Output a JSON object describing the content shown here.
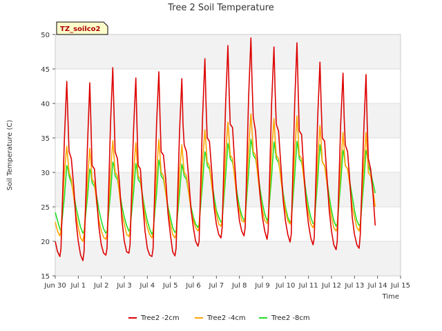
{
  "chart_data": {
    "type": "line",
    "title": "Tree 2 Soil Temperature",
    "xlabel": "Time",
    "ylabel": "Soil Temperature (C)",
    "xlim": [
      0,
      15
    ],
    "ylim": [
      15,
      50
    ],
    "x_ticks": [
      "Jun 30",
      "Jul 1",
      "Jul 2",
      "Jul 3",
      "Jul 4",
      "Jul 5",
      "Jul 6",
      "Jul 7",
      "Jul 8",
      "Jul 9",
      "Jul 10",
      "Jul 11",
      "Jul 12",
      "Jul 13",
      "Jul 14",
      "Jul 15"
    ],
    "y_ticks": [
      15,
      20,
      25,
      30,
      35,
      40,
      45,
      50
    ],
    "grid": true,
    "legend_position": "bottom",
    "badge": "TZ_soilco2",
    "colors": {
      "s1": "#dd0000",
      "s2": "#ffa500",
      "s3": "#22dd22",
      "band": "#f2f2f2",
      "badge_bg": "#ffffcc"
    },
    "series": [
      {
        "name": "Tree2 -2cm",
        "color": "#dd0000",
        "x": [
          0.0,
          0.1,
          0.2,
          0.25,
          0.4,
          0.5,
          0.55,
          0.6,
          0.7,
          0.8,
          0.9,
          1.0,
          1.1,
          1.2,
          1.25,
          1.4,
          1.5,
          1.55,
          1.6,
          1.7,
          1.8,
          1.9,
          2.0,
          2.1,
          2.2,
          2.25,
          2.4,
          2.5,
          2.55,
          2.6,
          2.7,
          2.8,
          2.9,
          3.0,
          3.1,
          3.2,
          3.25,
          3.4,
          3.5,
          3.55,
          3.6,
          3.7,
          3.8,
          3.9,
          4.0,
          4.1,
          4.2,
          4.25,
          4.4,
          4.5,
          4.55,
          4.6,
          4.7,
          4.8,
          4.9,
          5.0,
          5.1,
          5.2,
          5.25,
          5.4,
          5.5,
          5.55,
          5.6,
          5.7,
          5.8,
          5.9,
          6.0,
          6.1,
          6.2,
          6.25,
          6.4,
          6.5,
          6.55,
          6.6,
          6.7,
          6.8,
          6.9,
          7.0,
          7.1,
          7.2,
          7.25,
          7.4,
          7.5,
          7.55,
          7.6,
          7.7,
          7.8,
          7.9,
          8.0,
          8.1,
          8.2,
          8.25,
          8.4,
          8.5,
          8.55,
          8.6,
          8.7,
          8.8,
          8.9,
          9.0,
          9.1,
          9.2,
          9.25,
          9.4,
          9.5,
          9.55,
          9.6,
          9.7,
          9.8,
          9.9,
          10.0,
          10.1,
          10.2,
          10.25,
          10.4,
          10.5,
          10.55,
          10.6,
          10.7,
          10.8,
          10.9,
          11.0,
          11.1,
          11.2,
          11.25,
          11.4,
          11.5,
          11.55,
          11.6,
          11.7,
          11.8,
          11.9,
          12.0,
          12.1,
          12.2,
          12.25,
          12.4,
          12.5,
          12.55,
          12.6,
          12.7,
          12.8,
          12.9,
          13.0,
          13.1,
          13.2,
          13.25,
          13.4,
          13.5,
          13.55,
          13.6,
          13.7,
          13.8,
          13.9
        ],
        "values": [
          20.0,
          18.5,
          17.8,
          19.0,
          35.0,
          43.2,
          38.0,
          33.0,
          32.0,
          28.0,
          23.0,
          20.0,
          18.0,
          17.2,
          18.5,
          34.0,
          43.0,
          37.0,
          31.0,
          30.5,
          26.0,
          22.0,
          19.5,
          18.3,
          18.0,
          19.0,
          37.0,
          45.2,
          39.0,
          33.0,
          32.0,
          28.0,
          23.0,
          20.0,
          18.5,
          18.3,
          19.5,
          36.0,
          43.7,
          37.0,
          31.0,
          30.5,
          25.5,
          21.5,
          19.0,
          18.0,
          17.8,
          19.0,
          37.0,
          44.6,
          38.0,
          33.0,
          32.5,
          29.0,
          24.0,
          21.0,
          18.5,
          17.9,
          19.0,
          36.0,
          43.6,
          37.0,
          34.0,
          33.0,
          29.0,
          24.5,
          22.0,
          20.0,
          19.3,
          20.0,
          38.0,
          46.5,
          40.0,
          35.0,
          34.5,
          30.0,
          25.0,
          22.5,
          21.0,
          20.5,
          22.0,
          40.0,
          48.4,
          42.0,
          37.0,
          36.5,
          31.0,
          26.0,
          23.0,
          21.5,
          20.8,
          22.0,
          41.0,
          49.5,
          43.0,
          38.0,
          36.0,
          31.0,
          26.5,
          23.5,
          21.5,
          20.3,
          21.5,
          40.0,
          48.2,
          42.0,
          37.0,
          36.0,
          31.0,
          26.0,
          23.0,
          21.0,
          19.9,
          21.0,
          40.0,
          48.8,
          42.0,
          36.0,
          35.5,
          30.0,
          25.5,
          22.5,
          20.5,
          19.5,
          20.5,
          38.0,
          46.0,
          40.0,
          35.0,
          34.5,
          29.5,
          24.5,
          21.5,
          19.5,
          18.8,
          20.0,
          37.0,
          44.4,
          38.0,
          34.0,
          33.0,
          28.5,
          23.5,
          21.0,
          19.5,
          19.0,
          21.0,
          36.0,
          44.2,
          37.0,
          32.0,
          30.5,
          27.0,
          22.3
        ]
      },
      {
        "name": "Tree2 -4cm",
        "color": "#ffa500",
        "x": [
          0.0,
          0.1,
          0.2,
          0.25,
          0.4,
          0.5,
          0.55,
          0.6,
          0.7,
          0.8,
          0.9,
          1.0,
          1.1,
          1.2,
          1.25,
          1.4,
          1.5,
          1.55,
          1.6,
          1.7,
          1.8,
          1.9,
          2.0,
          2.1,
          2.2,
          2.25,
          2.4,
          2.5,
          2.55,
          2.6,
          2.7,
          2.8,
          2.9,
          3.0,
          3.1,
          3.2,
          3.25,
          3.4,
          3.5,
          3.55,
          3.6,
          3.7,
          3.8,
          3.9,
          4.0,
          4.1,
          4.2,
          4.25,
          4.4,
          4.5,
          4.55,
          4.6,
          4.7,
          4.8,
          4.9,
          5.0,
          5.1,
          5.2,
          5.25,
          5.4,
          5.5,
          5.55,
          5.6,
          5.7,
          5.8,
          5.9,
          6.0,
          6.1,
          6.2,
          6.25,
          6.4,
          6.5,
          6.55,
          6.6,
          6.7,
          6.8,
          6.9,
          7.0,
          7.1,
          7.2,
          7.25,
          7.4,
          7.5,
          7.55,
          7.6,
          7.7,
          7.8,
          7.9,
          8.0,
          8.1,
          8.2,
          8.25,
          8.4,
          8.5,
          8.55,
          8.6,
          8.7,
          8.8,
          8.9,
          9.0,
          9.1,
          9.2,
          9.25,
          9.4,
          9.5,
          9.55,
          9.6,
          9.7,
          9.8,
          9.9,
          10.0,
          10.1,
          10.2,
          10.25,
          10.4,
          10.5,
          10.55,
          10.6,
          10.7,
          10.8,
          10.9,
          11.0,
          11.1,
          11.2,
          11.25,
          11.4,
          11.5,
          11.55,
          11.6,
          11.7,
          11.8,
          11.9,
          12.0,
          12.1,
          12.2,
          12.25,
          12.4,
          12.5,
          12.55,
          12.6,
          12.7,
          12.8,
          12.9,
          13.0,
          13.1,
          13.2,
          13.25,
          13.4,
          13.5,
          13.55,
          13.6,
          13.7,
          13.8,
          13.9
        ],
        "values": [
          22.8,
          21.5,
          20.8,
          21.5,
          30.0,
          33.8,
          32.0,
          30.0,
          29.0,
          26.5,
          24.0,
          22.0,
          20.5,
          20.0,
          21.0,
          29.0,
          33.5,
          31.5,
          29.0,
          28.5,
          25.5,
          23.0,
          21.5,
          20.6,
          20.3,
          21.0,
          30.0,
          34.6,
          32.5,
          30.0,
          29.5,
          26.5,
          24.0,
          22.5,
          21.0,
          20.7,
          21.5,
          30.0,
          34.3,
          32.0,
          29.5,
          29.0,
          26.0,
          23.5,
          22.0,
          21.0,
          20.5,
          21.0,
          30.0,
          34.8,
          32.5,
          30.0,
          29.5,
          27.0,
          24.5,
          22.5,
          21.0,
          20.5,
          21.0,
          30.0,
          34.0,
          32.0,
          30.0,
          29.5,
          27.0,
          24.5,
          23.0,
          22.0,
          21.5,
          22.0,
          31.5,
          36.2,
          34.0,
          31.5,
          31.0,
          28.0,
          25.5,
          24.0,
          22.5,
          22.2,
          23.0,
          32.5,
          37.3,
          35.0,
          32.5,
          32.0,
          29.0,
          26.0,
          24.5,
          23.0,
          22.8,
          23.5,
          33.5,
          38.5,
          36.0,
          33.0,
          32.5,
          29.5,
          26.5,
          24.5,
          23.0,
          22.6,
          23.0,
          33.0,
          37.8,
          35.0,
          32.5,
          32.0,
          29.0,
          26.5,
          24.5,
          23.0,
          22.5,
          23.0,
          33.0,
          38.2,
          35.5,
          32.5,
          32.0,
          29.0,
          26.0,
          24.0,
          22.5,
          22.0,
          22.5,
          32.0,
          36.8,
          34.5,
          31.5,
          31.0,
          28.5,
          25.5,
          23.5,
          22.0,
          21.5,
          22.0,
          31.0,
          35.8,
          33.5,
          31.0,
          30.5,
          28.0,
          25.0,
          23.5,
          22.0,
          21.5,
          22.5,
          31.0,
          35.8,
          33.0,
          30.0,
          29.5,
          27.5,
          25.0
        ]
      },
      {
        "name": "Tree2 -8cm",
        "color": "#22dd22",
        "x": [
          0.0,
          0.1,
          0.2,
          0.25,
          0.4,
          0.5,
          0.55,
          0.6,
          0.7,
          0.8,
          0.9,
          1.0,
          1.1,
          1.2,
          1.25,
          1.4,
          1.5,
          1.55,
          1.6,
          1.7,
          1.8,
          1.9,
          2.0,
          2.1,
          2.2,
          2.25,
          2.4,
          2.5,
          2.55,
          2.6,
          2.7,
          2.8,
          2.9,
          3.0,
          3.1,
          3.2,
          3.25,
          3.4,
          3.5,
          3.55,
          3.6,
          3.7,
          3.8,
          3.9,
          4.0,
          4.1,
          4.2,
          4.25,
          4.4,
          4.5,
          4.55,
          4.6,
          4.7,
          4.8,
          4.9,
          5.0,
          5.1,
          5.2,
          5.25,
          5.4,
          5.5,
          5.55,
          5.6,
          5.7,
          5.8,
          5.9,
          6.0,
          6.1,
          6.2,
          6.25,
          6.4,
          6.5,
          6.55,
          6.6,
          6.7,
          6.8,
          6.9,
          7.0,
          7.1,
          7.2,
          7.25,
          7.4,
          7.5,
          7.55,
          7.6,
          7.7,
          7.8,
          7.9,
          8.0,
          8.1,
          8.2,
          8.25,
          8.4,
          8.5,
          8.55,
          8.6,
          8.7,
          8.8,
          8.9,
          9.0,
          9.1,
          9.2,
          9.25,
          9.4,
          9.5,
          9.55,
          9.6,
          9.7,
          9.8,
          9.9,
          10.0,
          10.1,
          10.2,
          10.25,
          10.4,
          10.5,
          10.55,
          10.6,
          10.7,
          10.8,
          10.9,
          11.0,
          11.1,
          11.2,
          11.25,
          11.4,
          11.5,
          11.55,
          11.6,
          11.7,
          11.8,
          11.9,
          12.0,
          12.1,
          12.2,
          12.25,
          12.4,
          12.5,
          12.55,
          12.6,
          12.7,
          12.8,
          12.9,
          13.0,
          13.1,
          13.2,
          13.25,
          13.4,
          13.5,
          13.55,
          13.6,
          13.7,
          13.8,
          13.9
        ],
        "values": [
          24.2,
          23.0,
          21.8,
          21.5,
          26.5,
          31.0,
          30.5,
          29.5,
          28.5,
          27.0,
          25.0,
          23.5,
          22.0,
          21.2,
          21.5,
          26.5,
          30.5,
          30.0,
          28.5,
          28.0,
          26.5,
          24.5,
          23.0,
          21.8,
          21.2,
          21.5,
          27.0,
          31.5,
          31.0,
          29.5,
          29.0,
          27.0,
          25.0,
          23.5,
          22.3,
          21.5,
          21.8,
          27.0,
          31.3,
          30.5,
          29.0,
          28.5,
          26.5,
          24.5,
          23.0,
          21.8,
          21.0,
          21.5,
          27.0,
          31.8,
          31.0,
          29.5,
          29.0,
          27.0,
          25.0,
          23.5,
          22.0,
          21.3,
          21.5,
          27.0,
          31.2,
          30.5,
          29.5,
          29.0,
          27.0,
          25.0,
          23.5,
          22.5,
          22.0,
          22.5,
          28.5,
          33.0,
          32.5,
          31.0,
          30.5,
          28.5,
          26.5,
          24.5,
          23.5,
          22.8,
          23.0,
          29.5,
          34.2,
          33.5,
          32.0,
          31.5,
          29.5,
          27.0,
          25.0,
          23.8,
          23.0,
          23.5,
          30.0,
          34.8,
          34.0,
          32.5,
          32.0,
          30.0,
          27.5,
          25.5,
          24.0,
          23.0,
          23.5,
          29.5,
          34.4,
          33.5,
          32.0,
          31.5,
          29.5,
          27.0,
          25.0,
          23.5,
          22.8,
          23.0,
          29.5,
          34.5,
          33.5,
          32.0,
          31.5,
          29.5,
          27.0,
          25.0,
          23.5,
          22.6,
          22.5,
          29.0,
          34.0,
          33.0,
          31.5,
          31.0,
          29.0,
          26.5,
          24.5,
          23.0,
          22.2,
          22.5,
          28.5,
          33.2,
          32.5,
          31.0,
          30.5,
          28.5,
          26.5,
          24.5,
          23.0,
          22.3,
          22.5,
          28.5,
          33.2,
          32.5,
          31.0,
          30.0,
          28.5,
          27.0
        ]
      }
    ]
  }
}
